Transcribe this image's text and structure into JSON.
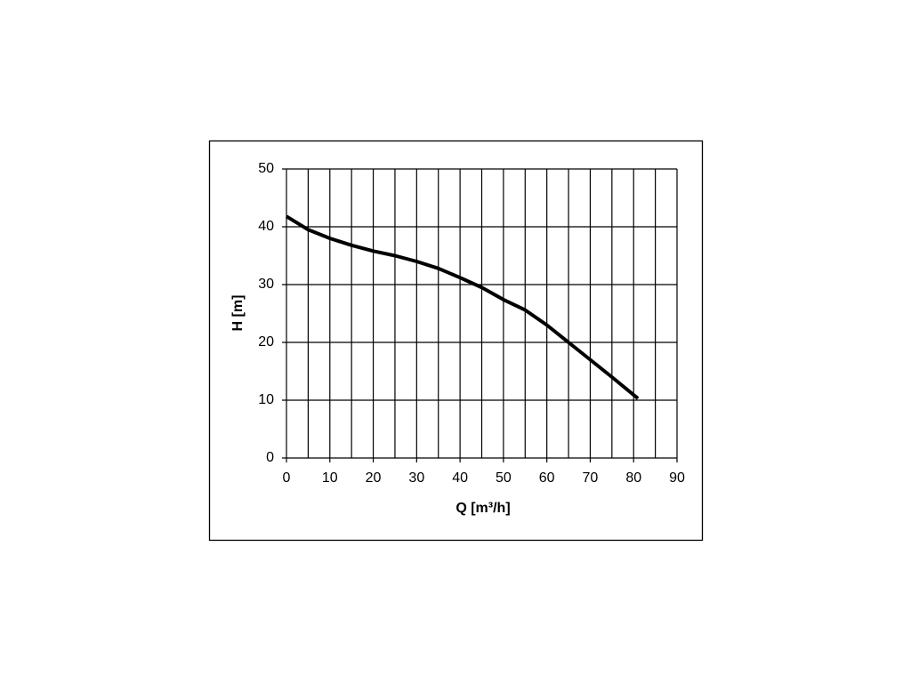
{
  "chart_data": {
    "type": "line",
    "xlabel": "Q [m³/h]",
    "ylabel": "H [m]",
    "xlim": [
      0,
      90
    ],
    "ylim": [
      0,
      50
    ],
    "xticks": [
      0,
      10,
      20,
      30,
      40,
      50,
      60,
      70,
      80,
      90
    ],
    "yticks": [
      0,
      10,
      20,
      30,
      40,
      50
    ],
    "x_grid_lines": [
      5,
      15,
      25,
      35,
      45,
      55,
      65,
      75,
      85
    ],
    "grid": true,
    "series": [
      {
        "color": "#000000",
        "x": [
          0,
          5,
          10,
          15,
          20,
          25,
          30,
          35,
          40,
          45,
          50,
          55,
          60,
          65,
          70,
          75,
          81
        ],
        "values": [
          41.8,
          39.5,
          38,
          36.8,
          35.8,
          35,
          34,
          32.8,
          31.2,
          29.5,
          27.4,
          25.6,
          23,
          20,
          17,
          14,
          10.3
        ]
      }
    ]
  }
}
